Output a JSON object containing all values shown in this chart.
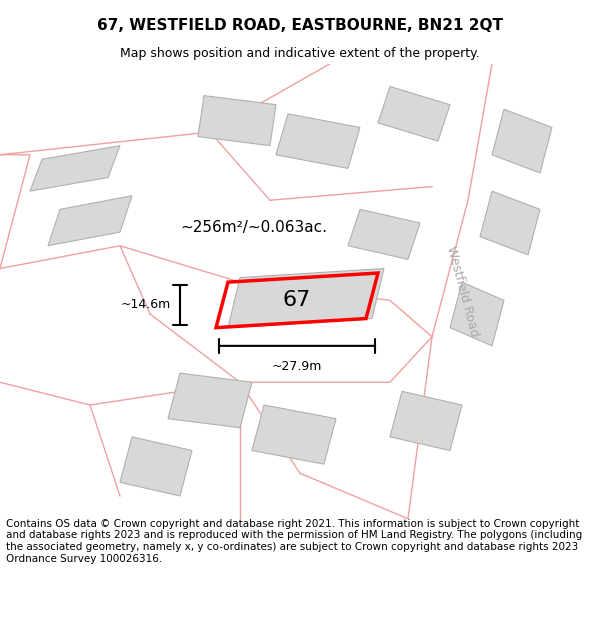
{
  "title": "67, WESTFIELD ROAD, EASTBOURNE, BN21 2QT",
  "subtitle": "Map shows position and indicative extent of the property.",
  "footer": "Contains OS data © Crown copyright and database right 2021. This information is subject to Crown copyright and database rights 2023 and is reproduced with the permission of HM Land Registry. The polygons (including the associated geometry, namely x, y co-ordinates) are subject to Crown copyright and database rights 2023 Ordnance Survey 100026316.",
  "bg_color": "#f5f5f5",
  "map_bg": "#f0f0f0",
  "road_color": "#f0a0a0",
  "building_color": "#d8d8d8",
  "building_edge": "#b0b0b0",
  "plot_color": "#ff0000",
  "road_label": "Westfield Road",
  "area_label": "~256m²/~0.063ac.",
  "plot_label": "67",
  "dim_width": "~27.9m",
  "dim_height": "~14.6m",
  "title_fontsize": 11,
  "subtitle_fontsize": 9,
  "footer_fontsize": 7.5
}
